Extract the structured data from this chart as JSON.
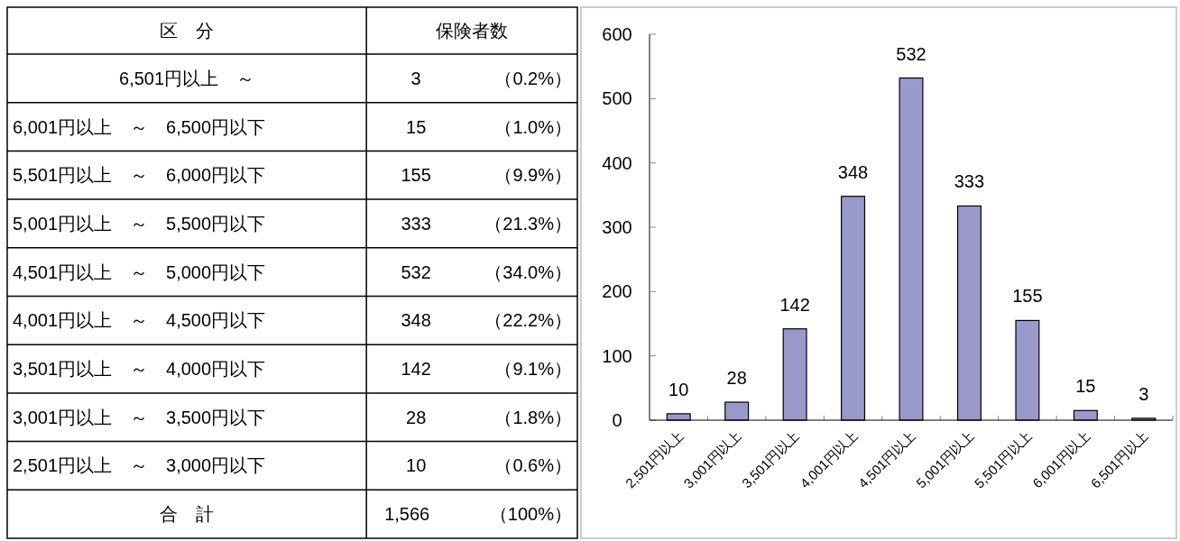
{
  "chart_data": [
    {
      "type": "other",
      "annotations": [
        "区　分",
        "保険者数",
        {
          "text": "（0.2%）",
          "y": "6,501円以上　～"
        },
        {
          "text": "（1.0%）",
          "y": "6,001円以上　～　6,500円以下"
        },
        {
          "text": "（9.9%）",
          "y": "5,501円以上　～　6,000円以下"
        },
        {
          "text": "（21.3%）",
          "y": "5,001円以上　～　5,500円以下"
        },
        {
          "text": "（34.0%）",
          "y": "4,501円以上　～　5,000円以下"
        },
        {
          "text": "（22.2%）",
          "y": "4,001円以上　～　4,500円以下"
        },
        {
          "text": "（9.1%）",
          "y": "3,501円以上　～　4,000円以下"
        },
        {
          "text": "（1.8%）",
          "y": "3,001円以上　～　3,500円以下"
        },
        {
          "text": "（0.6%）",
          "y": "2,501円以上　～　3,000円以下"
        },
        {
          "text": "（100%）",
          "y": "合　計"
        }
      ],
      "categories": [
        "6,501円以上　～",
        "6,001円以上　～　6,500円以下",
        "5,501円以上　～　6,000円以下",
        "5,001円以上　～　5,500円以下",
        "4,501円以上　～　5,000円以下",
        "4,001円以上　～　4,500円以下",
        "3,501円以上　～　4,000円以下",
        "3,001円以上　～　3,500円以下",
        "2,501円以上　～　3,000円以下",
        "合　計"
      ],
      "value_labels": [
        "3",
        "15",
        "155",
        "333",
        "532",
        "348",
        "142",
        "28",
        "10",
        "1,566"
      ]
    },
    {
      "type": "bar",
      "categories": [
        "2,501円以上",
        "3,001円以上",
        "3,501円以上",
        "4,001円以上",
        "4,501円以上",
        "5,001円以上",
        "5,501円以上",
        "6,001円以上",
        "6,501円以上"
      ],
      "values": [
        10,
        28,
        142,
        348,
        532,
        333,
        155,
        15,
        3
      ],
      "color": "#9999cc",
      "ylim": [
        0,
        600
      ],
      "yticks": [
        0,
        100,
        200,
        300,
        400,
        500,
        600
      ],
      "data_labels": true
    }
  ]
}
